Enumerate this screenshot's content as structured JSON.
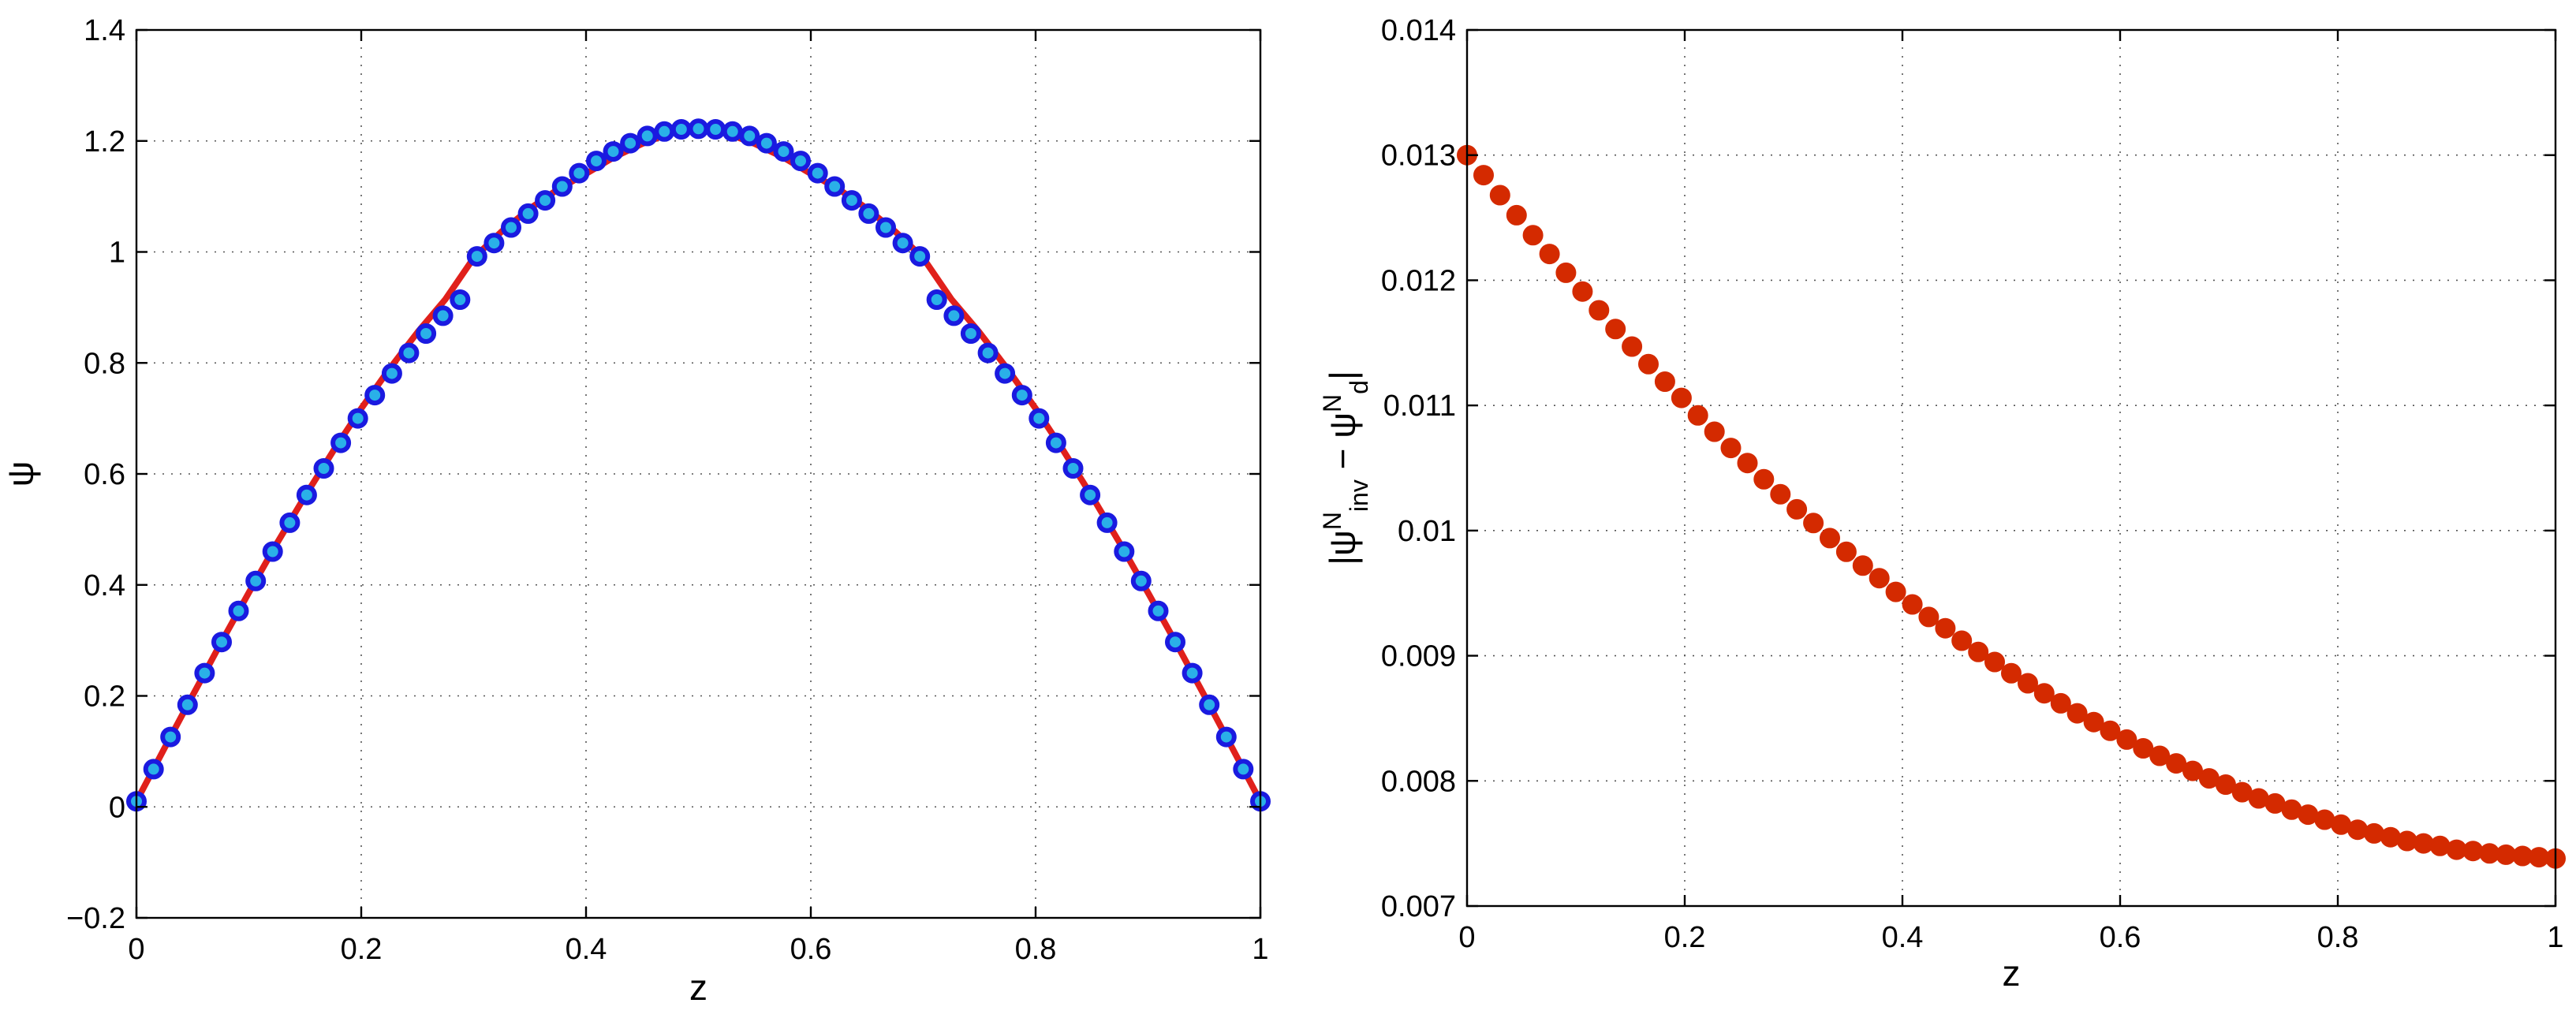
{
  "chart_data": [
    {
      "type": "line",
      "xlabel": "z",
      "ylabel": "ψ",
      "xlim": [
        0,
        1
      ],
      "ylim": [
        -0.2,
        1.4
      ],
      "xticks": [
        0,
        0.2,
        0.4,
        0.6,
        0.8,
        1
      ],
      "xtick_labels": [
        "0",
        "0.2",
        "0.4",
        "0.6",
        "0.8",
        "1"
      ],
      "yticks": [
        -0.2,
        0,
        0.2,
        0.4,
        0.6,
        0.8,
        1,
        1.2,
        1.4
      ],
      "ytick_labels": [
        "−0.2",
        "0",
        "0.2",
        "0.4",
        "0.6",
        "0.8",
        "1",
        "1.2",
        "1.4"
      ],
      "grid": true,
      "series": [
        {
          "style": "line",
          "color": "#e0201b",
          "x": [
            0,
            0.025,
            0.05,
            0.075,
            0.1,
            0.125,
            0.15,
            0.175,
            0.2,
            0.225,
            0.25,
            0.275,
            0.3,
            0.325,
            0.35,
            0.375,
            0.4,
            0.425,
            0.45,
            0.475,
            0.5,
            0.525,
            0.55,
            0.575,
            0.6,
            0.625,
            0.65,
            0.675,
            0.7,
            0.725,
            0.75,
            0.775,
            0.8,
            0.825,
            0.85,
            0.875,
            0.9,
            0.925,
            0.95,
            0.975,
            1
          ],
          "y": [
            0.01,
            0.106,
            0.201,
            0.295,
            0.386,
            0.475,
            0.56,
            0.641,
            0.718,
            0.789,
            0.855,
            0.915,
            0.989,
            1.037,
            1.078,
            1.113,
            1.141,
            1.171,
            1.195,
            1.214,
            1.22,
            1.214,
            1.195,
            1.171,
            1.141,
            1.113,
            1.078,
            1.037,
            0.989,
            0.915,
            0.855,
            0.789,
            0.718,
            0.641,
            0.56,
            0.475,
            0.386,
            0.295,
            0.201,
            0.106,
            0.01
          ]
        },
        {
          "style": "markers",
          "color": "#1a1ae0",
          "fill": "#2ab0e8",
          "x": [
            0,
            0.0152,
            0.0303,
            0.0455,
            0.0606,
            0.0758,
            0.0909,
            0.1061,
            0.1212,
            0.1364,
            0.1515,
            0.1667,
            0.1818,
            0.197,
            0.2121,
            0.2273,
            0.2424,
            0.2576,
            0.2727,
            0.2879,
            0.303,
            0.3182,
            0.3333,
            0.3485,
            0.3636,
            0.3788,
            0.3939,
            0.4091,
            0.4242,
            0.4394,
            0.4545,
            0.4697,
            0.4848,
            0.5,
            0.5152,
            0.5303,
            0.5455,
            0.5606,
            0.5758,
            0.5909,
            0.6061,
            0.6212,
            0.6364,
            0.6515,
            0.6667,
            0.6818,
            0.697,
            0.7121,
            0.7273,
            0.7424,
            0.7576,
            0.7727,
            0.7879,
            0.803,
            0.8182,
            0.8333,
            0.8485,
            0.8636,
            0.8788,
            0.8939,
            0.9091,
            0.9242,
            0.9394,
            0.9545,
            0.9697,
            0.9848,
            1
          ],
          "y": [
            0.01,
            0.068,
            0.126,
            0.184,
            0.241,
            0.297,
            0.353,
            0.407,
            0.46,
            0.512,
            0.562,
            0.61,
            0.656,
            0.7,
            0.742,
            0.781,
            0.818,
            0.853,
            0.885,
            0.914,
            0.992,
            1.016,
            1.044,
            1.069,
            1.093,
            1.118,
            1.142,
            1.164,
            1.181,
            1.196,
            1.209,
            1.217,
            1.221,
            1.222,
            1.221,
            1.217,
            1.209,
            1.196,
            1.181,
            1.164,
            1.142,
            1.118,
            1.093,
            1.069,
            1.044,
            1.016,
            0.992,
            0.914,
            0.885,
            0.853,
            0.818,
            0.781,
            0.742,
            0.7,
            0.656,
            0.61,
            0.562,
            0.512,
            0.46,
            0.407,
            0.353,
            0.297,
            0.241,
            0.184,
            0.126,
            0.068,
            0.01
          ]
        }
      ]
    },
    {
      "type": "scatter",
      "xlabel": "z",
      "ylabel_parts": {
        "open": "|ψ",
        "sup1": "N",
        "sub1": "inv",
        "mid": " − ψ",
        "sup2": "N",
        "sub2": "d",
        "close": "|"
      },
      "xlim": [
        0,
        1
      ],
      "ylim": [
        0.007,
        0.014
      ],
      "xticks": [
        0,
        0.2,
        0.4,
        0.6,
        0.8,
        1
      ],
      "xtick_labels": [
        "0",
        "0.2",
        "0.4",
        "0.6",
        "0.8",
        "1"
      ],
      "yticks": [
        0.007,
        0.008,
        0.009,
        0.01,
        0.011,
        0.012,
        0.013,
        0.014
      ],
      "ytick_labels": [
        "0.007",
        "0.008",
        "0.009",
        "0.01",
        "0.011",
        "0.012",
        "0.013",
        "0.014"
      ],
      "grid": true,
      "series": [
        {
          "style": "markers",
          "color": "#d42a00",
          "fill": "#d42a00",
          "x": [
            0,
            0.0152,
            0.0303,
            0.0455,
            0.0606,
            0.0758,
            0.0909,
            0.1061,
            0.1212,
            0.1364,
            0.1515,
            0.1667,
            0.1818,
            0.197,
            0.2121,
            0.2273,
            0.2424,
            0.2576,
            0.2727,
            0.2879,
            0.303,
            0.3182,
            0.3333,
            0.3485,
            0.3636,
            0.3788,
            0.3939,
            0.4091,
            0.4242,
            0.4394,
            0.4545,
            0.4697,
            0.4848,
            0.5,
            0.5152,
            0.5303,
            0.5455,
            0.5606,
            0.5758,
            0.5909,
            0.6061,
            0.6212,
            0.6364,
            0.6515,
            0.6667,
            0.6818,
            0.697,
            0.7121,
            0.7273,
            0.7424,
            0.7576,
            0.7727,
            0.7879,
            0.803,
            0.8182,
            0.8333,
            0.8485,
            0.8636,
            0.8788,
            0.8939,
            0.9091,
            0.9242,
            0.9394,
            0.9545,
            0.9697,
            0.9848,
            1
          ],
          "y": [
            0.013,
            0.01284,
            0.01268,
            0.01252,
            0.01236,
            0.01221,
            0.01206,
            0.01191,
            0.01176,
            0.01161,
            0.01147,
            0.01133,
            0.01119,
            0.01106,
            0.01092,
            0.01079,
            0.01066,
            0.01054,
            0.01041,
            0.01029,
            0.01017,
            0.01006,
            0.00994,
            0.00983,
            0.00972,
            0.00962,
            0.00951,
            0.00941,
            0.00931,
            0.00922,
            0.00912,
            0.00903,
            0.00895,
            0.00886,
            0.00878,
            0.0087,
            0.00862,
            0.00854,
            0.00847,
            0.0084,
            0.00833,
            0.00826,
            0.0082,
            0.00814,
            0.00808,
            0.00802,
            0.00797,
            0.00791,
            0.00786,
            0.00782,
            0.00777,
            0.00773,
            0.00769,
            0.00765,
            0.00761,
            0.00758,
            0.00755,
            0.00752,
            0.0075,
            0.00748,
            0.00745,
            0.00744,
            0.00742,
            0.00741,
            0.0074,
            0.00739,
            0.00738
          ]
        }
      ]
    }
  ]
}
